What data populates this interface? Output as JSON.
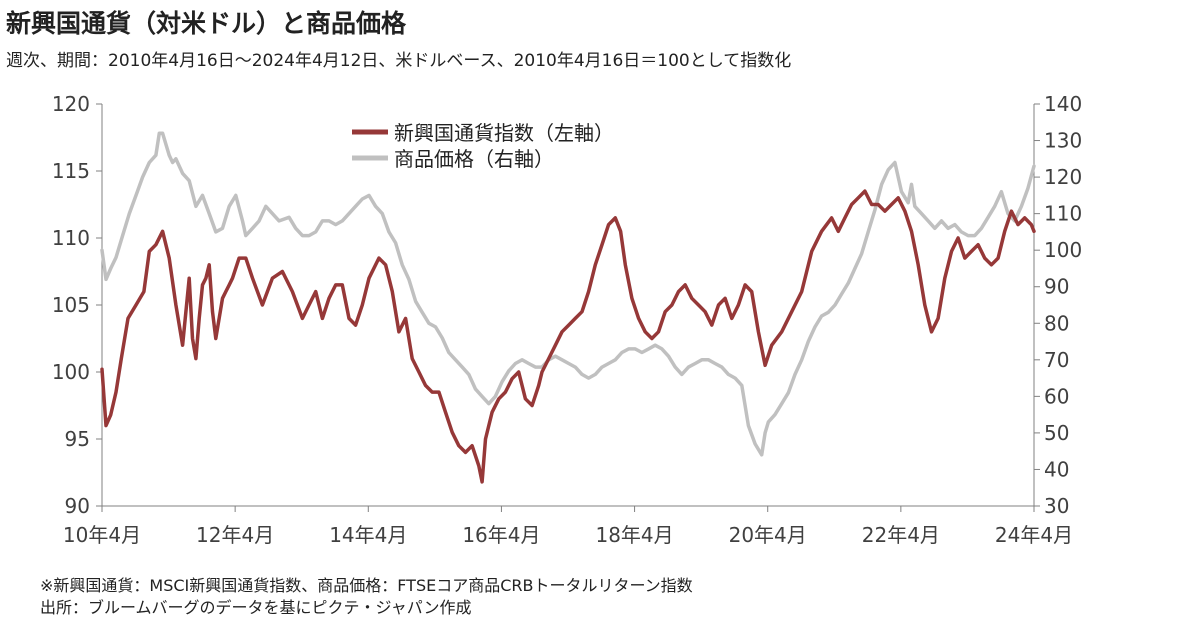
{
  "title": "新興国通貨（対米ドル）と商品価格",
  "subtitle": "週次、期間：2010年4月16日～2024年4月12日、米ドルベース、2010年4月16日＝100として指数化",
  "notes": [
    "※新興国通貨：MSCI新興国通貨指数、商品価格：FTSEコア商品CRBトータルリターン指数",
    "出所：ブルームバーグのデータを基にピクテ・ジャパン作成"
  ],
  "chart_data": {
    "type": "line",
    "title": "新興国通貨（対米ドル）と商品価格",
    "x_tick_labels": [
      "10年4月",
      "12年4月",
      "14年4月",
      "16年4月",
      "18年4月",
      "20年4月",
      "22年4月",
      "24年4月"
    ],
    "x_tick_years": [
      2010.29,
      2012.29,
      2014.29,
      2016.29,
      2018.29,
      2020.29,
      2022.29,
      2024.29
    ],
    "xlim": [
      2010.29,
      2024.29
    ],
    "left_axis": {
      "ylim": [
        90,
        120
      ],
      "ticks": [
        90,
        95,
        100,
        105,
        110,
        115,
        120
      ]
    },
    "right_axis": {
      "ylim": [
        30,
        140
      ],
      "ticks": [
        30,
        40,
        50,
        60,
        70,
        80,
        90,
        100,
        110,
        120,
        130,
        140
      ]
    },
    "legend_position": "top-center",
    "grid": false,
    "series": [
      {
        "name": "新興国通貨指数（左軸）",
        "axis": "left",
        "color": "#963838",
        "x": [
          2010.29,
          2010.35,
          2010.42,
          2010.5,
          2010.58,
          2010.68,
          2010.8,
          2010.92,
          2011.0,
          2011.1,
          2011.2,
          2011.3,
          2011.4,
          2011.5,
          2011.6,
          2011.65,
          2011.7,
          2011.75,
          2011.8,
          2011.85,
          2011.9,
          2011.95,
          2012.0,
          2012.1,
          2012.15,
          2012.2,
          2012.25,
          2012.35,
          2012.45,
          2012.55,
          2012.7,
          2012.85,
          2013.0,
          2013.15,
          2013.3,
          2013.4,
          2013.5,
          2013.6,
          2013.7,
          2013.8,
          2013.9,
          2014.0,
          2014.1,
          2014.2,
          2014.3,
          2014.45,
          2014.55,
          2014.65,
          2014.75,
          2014.85,
          2014.95,
          2015.05,
          2015.15,
          2015.25,
          2015.35,
          2015.45,
          2015.55,
          2015.65,
          2015.75,
          2015.85,
          2015.95,
          2016.0,
          2016.05,
          2016.15,
          2016.25,
          2016.35,
          2016.45,
          2016.55,
          2016.65,
          2016.75,
          2016.85,
          2016.9,
          2017.0,
          2017.1,
          2017.2,
          2017.3,
          2017.4,
          2017.5,
          2017.6,
          2017.7,
          2017.8,
          2017.9,
          2018.0,
          2018.08,
          2018.15,
          2018.25,
          2018.35,
          2018.45,
          2018.55,
          2018.65,
          2018.75,
          2018.85,
          2018.95,
          2019.05,
          2019.15,
          2019.25,
          2019.35,
          2019.45,
          2019.55,
          2019.65,
          2019.75,
          2019.85,
          2019.95,
          2020.05,
          2020.15,
          2020.25,
          2020.35,
          2020.5,
          2020.65,
          2020.8,
          2020.95,
          2021.1,
          2021.25,
          2021.35,
          2021.45,
          2021.55,
          2021.65,
          2021.75,
          2021.85,
          2021.95,
          2022.05,
          2022.15,
          2022.25,
          2022.35,
          2022.45,
          2022.55,
          2022.65,
          2022.75,
          2022.85,
          2022.95,
          2023.05,
          2023.15,
          2023.25,
          2023.35,
          2023.45,
          2023.55,
          2023.65,
          2023.75,
          2023.85,
          2023.95,
          2024.05,
          2024.15,
          2024.25,
          2024.29
        ],
        "y": [
          100.2,
          96.0,
          96.8,
          98.5,
          101.0,
          104.0,
          105.0,
          106.0,
          109.0,
          109.5,
          110.5,
          108.5,
          105.0,
          102.0,
          107.0,
          102.5,
          101.0,
          104.0,
          106.5,
          107.0,
          108.0,
          104.5,
          102.5,
          105.5,
          106.0,
          106.5,
          107.0,
          108.5,
          108.5,
          107.0,
          105.0,
          107.0,
          107.5,
          106.0,
          104.0,
          105.0,
          106.0,
          104.0,
          105.5,
          106.5,
          106.5,
          104.0,
          103.5,
          105.0,
          107.0,
          108.5,
          108.0,
          106.0,
          103.0,
          104.0,
          101.0,
          100.0,
          99.0,
          98.5,
          98.5,
          97.0,
          95.5,
          94.5,
          94.0,
          94.5,
          93.0,
          91.8,
          95.0,
          97.0,
          98.0,
          98.5,
          99.5,
          100.0,
          98.0,
          97.5,
          99.0,
          100.0,
          101.0,
          102.0,
          103.0,
          103.5,
          104.0,
          104.5,
          106.0,
          108.0,
          109.5,
          111.0,
          111.5,
          110.5,
          108.0,
          105.5,
          104.0,
          103.0,
          102.5,
          103.0,
          104.5,
          105.0,
          106.0,
          106.5,
          105.5,
          105.0,
          104.5,
          103.5,
          105.0,
          105.5,
          104.0,
          105.0,
          106.5,
          106.0,
          103.0,
          100.5,
          102.0,
          103.0,
          104.5,
          106.0,
          109.0,
          110.5,
          111.5,
          110.5,
          111.5,
          112.5,
          113.0,
          113.5,
          112.5,
          112.5,
          112.0,
          112.5,
          113.0,
          112.0,
          110.5,
          108.0,
          105.0,
          103.0,
          104.0,
          107.0,
          109.0,
          110.0,
          108.5,
          109.0,
          109.5,
          108.5,
          108.0,
          108.5,
          110.5,
          112.0,
          111.0,
          111.5,
          111.0,
          110.5
        ]
      },
      {
        "name": "商品価格（右軸）",
        "axis": "right",
        "color": "#c0c0c0",
        "x": [
          2010.29,
          2010.35,
          2010.42,
          2010.5,
          2010.6,
          2010.7,
          2010.8,
          2010.9,
          2011.0,
          2011.1,
          2011.15,
          2011.2,
          2011.3,
          2011.35,
          2011.4,
          2011.5,
          2011.6,
          2011.7,
          2011.8,
          2011.9,
          2012.0,
          2012.1,
          2012.2,
          2012.3,
          2012.4,
          2012.45,
          2012.55,
          2012.65,
          2012.75,
          2012.85,
          2012.95,
          2013.1,
          2013.2,
          2013.3,
          2013.4,
          2013.5,
          2013.6,
          2013.7,
          2013.8,
          2013.9,
          2014.0,
          2014.1,
          2014.2,
          2014.3,
          2014.4,
          2014.5,
          2014.6,
          2014.7,
          2014.8,
          2014.9,
          2015.0,
          2015.1,
          2015.2,
          2015.3,
          2015.4,
          2015.5,
          2015.6,
          2015.7,
          2015.8,
          2015.9,
          2016.0,
          2016.1,
          2016.2,
          2016.3,
          2016.4,
          2016.5,
          2016.6,
          2016.7,
          2016.8,
          2016.9,
          2017.0,
          2017.1,
          2017.2,
          2017.3,
          2017.4,
          2017.5,
          2017.6,
          2017.7,
          2017.8,
          2017.9,
          2018.0,
          2018.1,
          2018.2,
          2018.3,
          2018.4,
          2018.5,
          2018.6,
          2018.7,
          2018.8,
          2018.9,
          2019.0,
          2019.1,
          2019.2,
          2019.3,
          2019.4,
          2019.5,
          2019.6,
          2019.7,
          2019.8,
          2019.9,
          2020.0,
          2020.1,
          2020.2,
          2020.25,
          2020.3,
          2020.4,
          2020.5,
          2020.6,
          2020.7,
          2020.8,
          2020.9,
          2021.0,
          2021.1,
          2021.2,
          2021.3,
          2021.4,
          2021.5,
          2021.6,
          2021.7,
          2021.8,
          2021.9,
          2022.0,
          2022.1,
          2022.2,
          2022.3,
          2022.4,
          2022.45,
          2022.5,
          2022.6,
          2022.7,
          2022.8,
          2022.9,
          2023.0,
          2023.1,
          2023.2,
          2023.3,
          2023.4,
          2023.5,
          2023.6,
          2023.7,
          2023.8,
          2023.9,
          2024.0,
          2024.1,
          2024.2,
          2024.29
        ],
        "y": [
          100,
          92,
          95,
          98,
          104,
          110,
          115,
          120,
          124,
          126,
          132,
          132,
          126,
          124,
          125,
          121,
          119,
          112,
          115,
          110,
          105,
          106,
          112,
          115,
          108,
          104,
          106,
          108,
          112,
          110,
          108,
          109,
          106,
          104,
          104,
          105,
          108,
          108,
          107,
          108,
          110,
          112,
          114,
          115,
          112,
          110,
          105,
          102,
          96,
          92,
          86,
          83,
          80,
          79,
          76,
          72,
          70,
          68,
          66,
          62,
          60,
          58,
          60,
          64,
          67,
          69,
          70,
          69,
          68,
          68,
          70,
          71,
          70,
          69,
          68,
          66,
          65,
          66,
          68,
          69,
          70,
          72,
          73,
          73,
          72,
          73,
          74,
          73,
          71,
          68,
          66,
          68,
          69,
          70,
          70,
          69,
          68,
          66,
          65,
          63,
          52,
          47,
          44,
          50,
          53,
          55,
          58,
          61,
          66,
          70,
          75,
          79,
          82,
          83,
          85,
          88,
          91,
          95,
          99,
          105,
          111,
          118,
          122,
          124,
          116,
          113,
          118,
          112,
          110,
          108,
          106,
          108,
          106,
          107,
          105,
          104,
          104,
          106,
          109,
          112,
          116,
          110,
          108,
          112,
          117,
          123
        ]
      }
    ]
  }
}
